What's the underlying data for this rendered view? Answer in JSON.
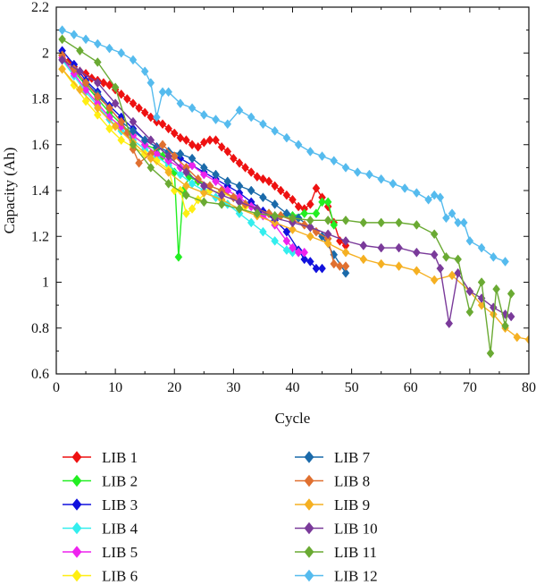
{
  "chart_data": {
    "type": "line",
    "xlabel": "Cycle",
    "ylabel": "Capacity (Ah)",
    "xlim": [
      0,
      80
    ],
    "ylim": [
      0.6,
      2.2
    ],
    "xticks": [
      0,
      10,
      20,
      30,
      40,
      50,
      60,
      70,
      80
    ],
    "xtick_labels": [
      "0",
      "10",
      "20",
      "30",
      "40",
      "50",
      "60",
      "70",
      "80"
    ],
    "yticks": [
      0.6,
      0.8,
      1.0,
      1.2,
      1.4,
      1.6,
      1.8,
      2.0,
      2.2
    ],
    "ytick_labels": [
      "0.6",
      "0.8",
      "1",
      "1.2",
      "1.4",
      "1.6",
      "1.8",
      "2",
      "2.2"
    ],
    "grid": false,
    "legend_placement": "below",
    "marker": "diamond",
    "series": [
      {
        "name": "LIB 1",
        "color": "#ee1111",
        "x": [
          1,
          2,
          3,
          4,
          5,
          6,
          7,
          8,
          9,
          10,
          11,
          12,
          13,
          14,
          15,
          16,
          17,
          18,
          19,
          20,
          21,
          22,
          23,
          24,
          25,
          26,
          27,
          28,
          29,
          30,
          31,
          32,
          33,
          34,
          35,
          36,
          37,
          38,
          39,
          40,
          41,
          42,
          43,
          44,
          45,
          46,
          47,
          48,
          49
        ],
        "y": [
          1.99,
          1.96,
          1.94,
          1.92,
          1.91,
          1.89,
          1.88,
          1.87,
          1.86,
          1.84,
          1.82,
          1.8,
          1.78,
          1.76,
          1.74,
          1.72,
          1.7,
          1.69,
          1.67,
          1.65,
          1.63,
          1.62,
          1.6,
          1.59,
          1.61,
          1.62,
          1.62,
          1.59,
          1.57,
          1.54,
          1.52,
          1.5,
          1.48,
          1.46,
          1.45,
          1.44,
          1.42,
          1.4,
          1.38,
          1.36,
          1.33,
          1.32,
          1.34,
          1.41,
          1.37,
          1.33,
          1.26,
          1.18,
          1.16
        ]
      },
      {
        "name": "LIB 2",
        "color": "#22ee22",
        "x": [
          1,
          3,
          5,
          7,
          9,
          11,
          13,
          15,
          17,
          18,
          19,
          20,
          20.7,
          21.5,
          22.5,
          24,
          26,
          28,
          30,
          32,
          34,
          36,
          38,
          40,
          42,
          44,
          45,
          46,
          47
        ],
        "y": [
          1.97,
          1.92,
          1.86,
          1.8,
          1.74,
          1.69,
          1.64,
          1.6,
          1.58,
          1.55,
          1.52,
          1.48,
          1.11,
          1.4,
          1.46,
          1.44,
          1.42,
          1.4,
          1.37,
          1.34,
          1.32,
          1.3,
          1.29,
          1.29,
          1.3,
          1.3,
          1.35,
          1.35,
          1.25
        ]
      },
      {
        "name": "LIB 3",
        "color": "#1111dd",
        "x": [
          1,
          3,
          5,
          7,
          9,
          11,
          13,
          15,
          17,
          19,
          21,
          23,
          25,
          27,
          29,
          31,
          33,
          35,
          37,
          39,
          41,
          42,
          43,
          44,
          45
        ],
        "y": [
          2.01,
          1.95,
          1.88,
          1.83,
          1.77,
          1.72,
          1.67,
          1.62,
          1.59,
          1.57,
          1.54,
          1.51,
          1.48,
          1.45,
          1.42,
          1.39,
          1.35,
          1.31,
          1.27,
          1.22,
          1.14,
          1.1,
          1.09,
          1.06,
          1.06
        ]
      },
      {
        "name": "LIB 4",
        "color": "#33eeee",
        "x": [
          1,
          3,
          5,
          7,
          9,
          11,
          13,
          15,
          17,
          19,
          21,
          23,
          25,
          27,
          29,
          31,
          33,
          35,
          37,
          39,
          40,
          41
        ],
        "y": [
          1.97,
          1.9,
          1.83,
          1.77,
          1.71,
          1.66,
          1.62,
          1.58,
          1.55,
          1.51,
          1.47,
          1.43,
          1.4,
          1.37,
          1.34,
          1.3,
          1.26,
          1.22,
          1.18,
          1.14,
          1.13,
          1.13
        ]
      },
      {
        "name": "LIB 5",
        "color": "#ee22ee",
        "x": [
          1,
          3,
          5,
          7,
          9,
          11,
          13,
          15,
          17,
          19,
          21,
          23,
          25,
          27,
          29,
          31,
          33,
          35,
          37,
          39,
          40,
          41,
          42
        ],
        "y": [
          1.98,
          1.91,
          1.84,
          1.78,
          1.72,
          1.68,
          1.64,
          1.6,
          1.56,
          1.53,
          1.5,
          1.51,
          1.47,
          1.44,
          1.4,
          1.37,
          1.33,
          1.29,
          1.25,
          1.18,
          1.15,
          1.13,
          1.13
        ]
      },
      {
        "name": "LIB 6",
        "color": "#ffee11",
        "x": [
          1,
          3,
          5,
          7,
          9,
          11,
          13,
          15,
          17,
          19,
          20,
          21,
          22,
          23,
          24,
          26,
          28,
          30,
          32
        ],
        "y": [
          1.93,
          1.86,
          1.79,
          1.73,
          1.67,
          1.62,
          1.59,
          1.56,
          1.53,
          1.49,
          1.4,
          1.4,
          1.3,
          1.32,
          1.36,
          1.4,
          1.39,
          1.37,
          1.33
        ]
      },
      {
        "name": "LIB 7",
        "color": "#1a6aaa",
        "x": [
          1,
          3,
          5,
          7,
          9,
          11,
          13,
          15,
          17,
          19,
          21,
          23,
          25,
          27,
          29,
          31,
          33,
          35,
          37,
          39,
          41,
          43,
          45,
          47,
          49
        ],
        "y": [
          1.99,
          1.93,
          1.87,
          1.82,
          1.76,
          1.7,
          1.66,
          1.62,
          1.59,
          1.57,
          1.56,
          1.54,
          1.5,
          1.47,
          1.44,
          1.42,
          1.4,
          1.37,
          1.34,
          1.3,
          1.28,
          1.24,
          1.2,
          1.12,
          1.04
        ]
      },
      {
        "name": "LIB 8",
        "color": "#e07030",
        "x": [
          1,
          3,
          5,
          7,
          9,
          11,
          12,
          13,
          14,
          16,
          18,
          20,
          22,
          24,
          26,
          28,
          30,
          32,
          34,
          36,
          38,
          40,
          42,
          44,
          46,
          47,
          48,
          49
        ],
        "y": [
          1.99,
          1.93,
          1.87,
          1.81,
          1.76,
          1.7,
          1.65,
          1.58,
          1.52,
          1.56,
          1.6,
          1.55,
          1.5,
          1.45,
          1.42,
          1.4,
          1.37,
          1.34,
          1.32,
          1.3,
          1.29,
          1.27,
          1.25,
          1.22,
          1.19,
          1.08,
          1.07,
          1.07
        ]
      },
      {
        "name": "LIB 9",
        "color": "#f5b022",
        "x": [
          1,
          4,
          7,
          10,
          13,
          16,
          19,
          22,
          25,
          28,
          31,
          34,
          37,
          40,
          43,
          46,
          49,
          52,
          55,
          58,
          61,
          64,
          67,
          70,
          72,
          74,
          76,
          78,
          80
        ],
        "y": [
          1.93,
          1.84,
          1.76,
          1.68,
          1.61,
          1.54,
          1.48,
          1.42,
          1.39,
          1.36,
          1.32,
          1.29,
          1.26,
          1.23,
          1.2,
          1.17,
          1.13,
          1.1,
          1.08,
          1.07,
          1.05,
          1.01,
          1.03,
          0.96,
          0.9,
          0.86,
          0.8,
          0.76,
          0.75
        ]
      },
      {
        "name": "LIB 10",
        "color": "#7a3a9a",
        "x": [
          1,
          4,
          7,
          10,
          13,
          16,
          19,
          22,
          25,
          28,
          31,
          34,
          37,
          40,
          43,
          46,
          49,
          52,
          55,
          58,
          61,
          64,
          65,
          66.5,
          68,
          70,
          72,
          74,
          76,
          77
        ],
        "y": [
          1.97,
          1.92,
          1.87,
          1.78,
          1.7,
          1.62,
          1.55,
          1.48,
          1.42,
          1.38,
          1.35,
          1.32,
          1.28,
          1.26,
          1.24,
          1.21,
          1.18,
          1.16,
          1.15,
          1.15,
          1.13,
          1.12,
          1.06,
          0.82,
          1.04,
          0.96,
          0.93,
          0.89,
          0.86,
          0.85
        ]
      },
      {
        "name": "LIB 11",
        "color": "#6aaa33",
        "x": [
          1,
          4,
          7,
          10,
          13,
          16,
          19,
          22,
          25,
          28,
          31,
          34,
          37,
          40,
          43,
          46,
          49,
          52,
          55,
          58,
          61,
          64,
          66,
          68,
          70,
          72,
          73.5,
          74.5,
          76,
          77
        ],
        "y": [
          2.06,
          2.01,
          1.96,
          1.85,
          1.6,
          1.5,
          1.43,
          1.38,
          1.35,
          1.34,
          1.32,
          1.3,
          1.29,
          1.28,
          1.27,
          1.27,
          1.27,
          1.26,
          1.26,
          1.26,
          1.25,
          1.21,
          1.11,
          1.1,
          0.87,
          1.0,
          0.69,
          0.97,
          0.81,
          0.95
        ]
      },
      {
        "name": "LIB 12",
        "color": "#55bbee",
        "x": [
          1,
          3,
          5,
          7,
          9,
          11,
          13,
          15,
          16,
          17,
          18,
          19,
          21,
          23,
          25,
          27,
          29,
          31,
          33,
          35,
          37,
          39,
          41,
          43,
          45,
          47,
          49,
          51,
          53,
          55,
          57,
          59,
          61,
          63,
          64,
          65,
          66,
          67,
          68,
          69,
          70,
          72,
          74,
          76
        ],
        "y": [
          2.1,
          2.08,
          2.06,
          2.04,
          2.02,
          2.0,
          1.97,
          1.92,
          1.87,
          1.72,
          1.83,
          1.83,
          1.78,
          1.76,
          1.73,
          1.71,
          1.69,
          1.75,
          1.72,
          1.69,
          1.66,
          1.63,
          1.6,
          1.57,
          1.55,
          1.53,
          1.5,
          1.48,
          1.47,
          1.45,
          1.43,
          1.41,
          1.39,
          1.36,
          1.38,
          1.37,
          1.28,
          1.3,
          1.26,
          1.26,
          1.18,
          1.15,
          1.11,
          1.09
        ]
      }
    ]
  }
}
